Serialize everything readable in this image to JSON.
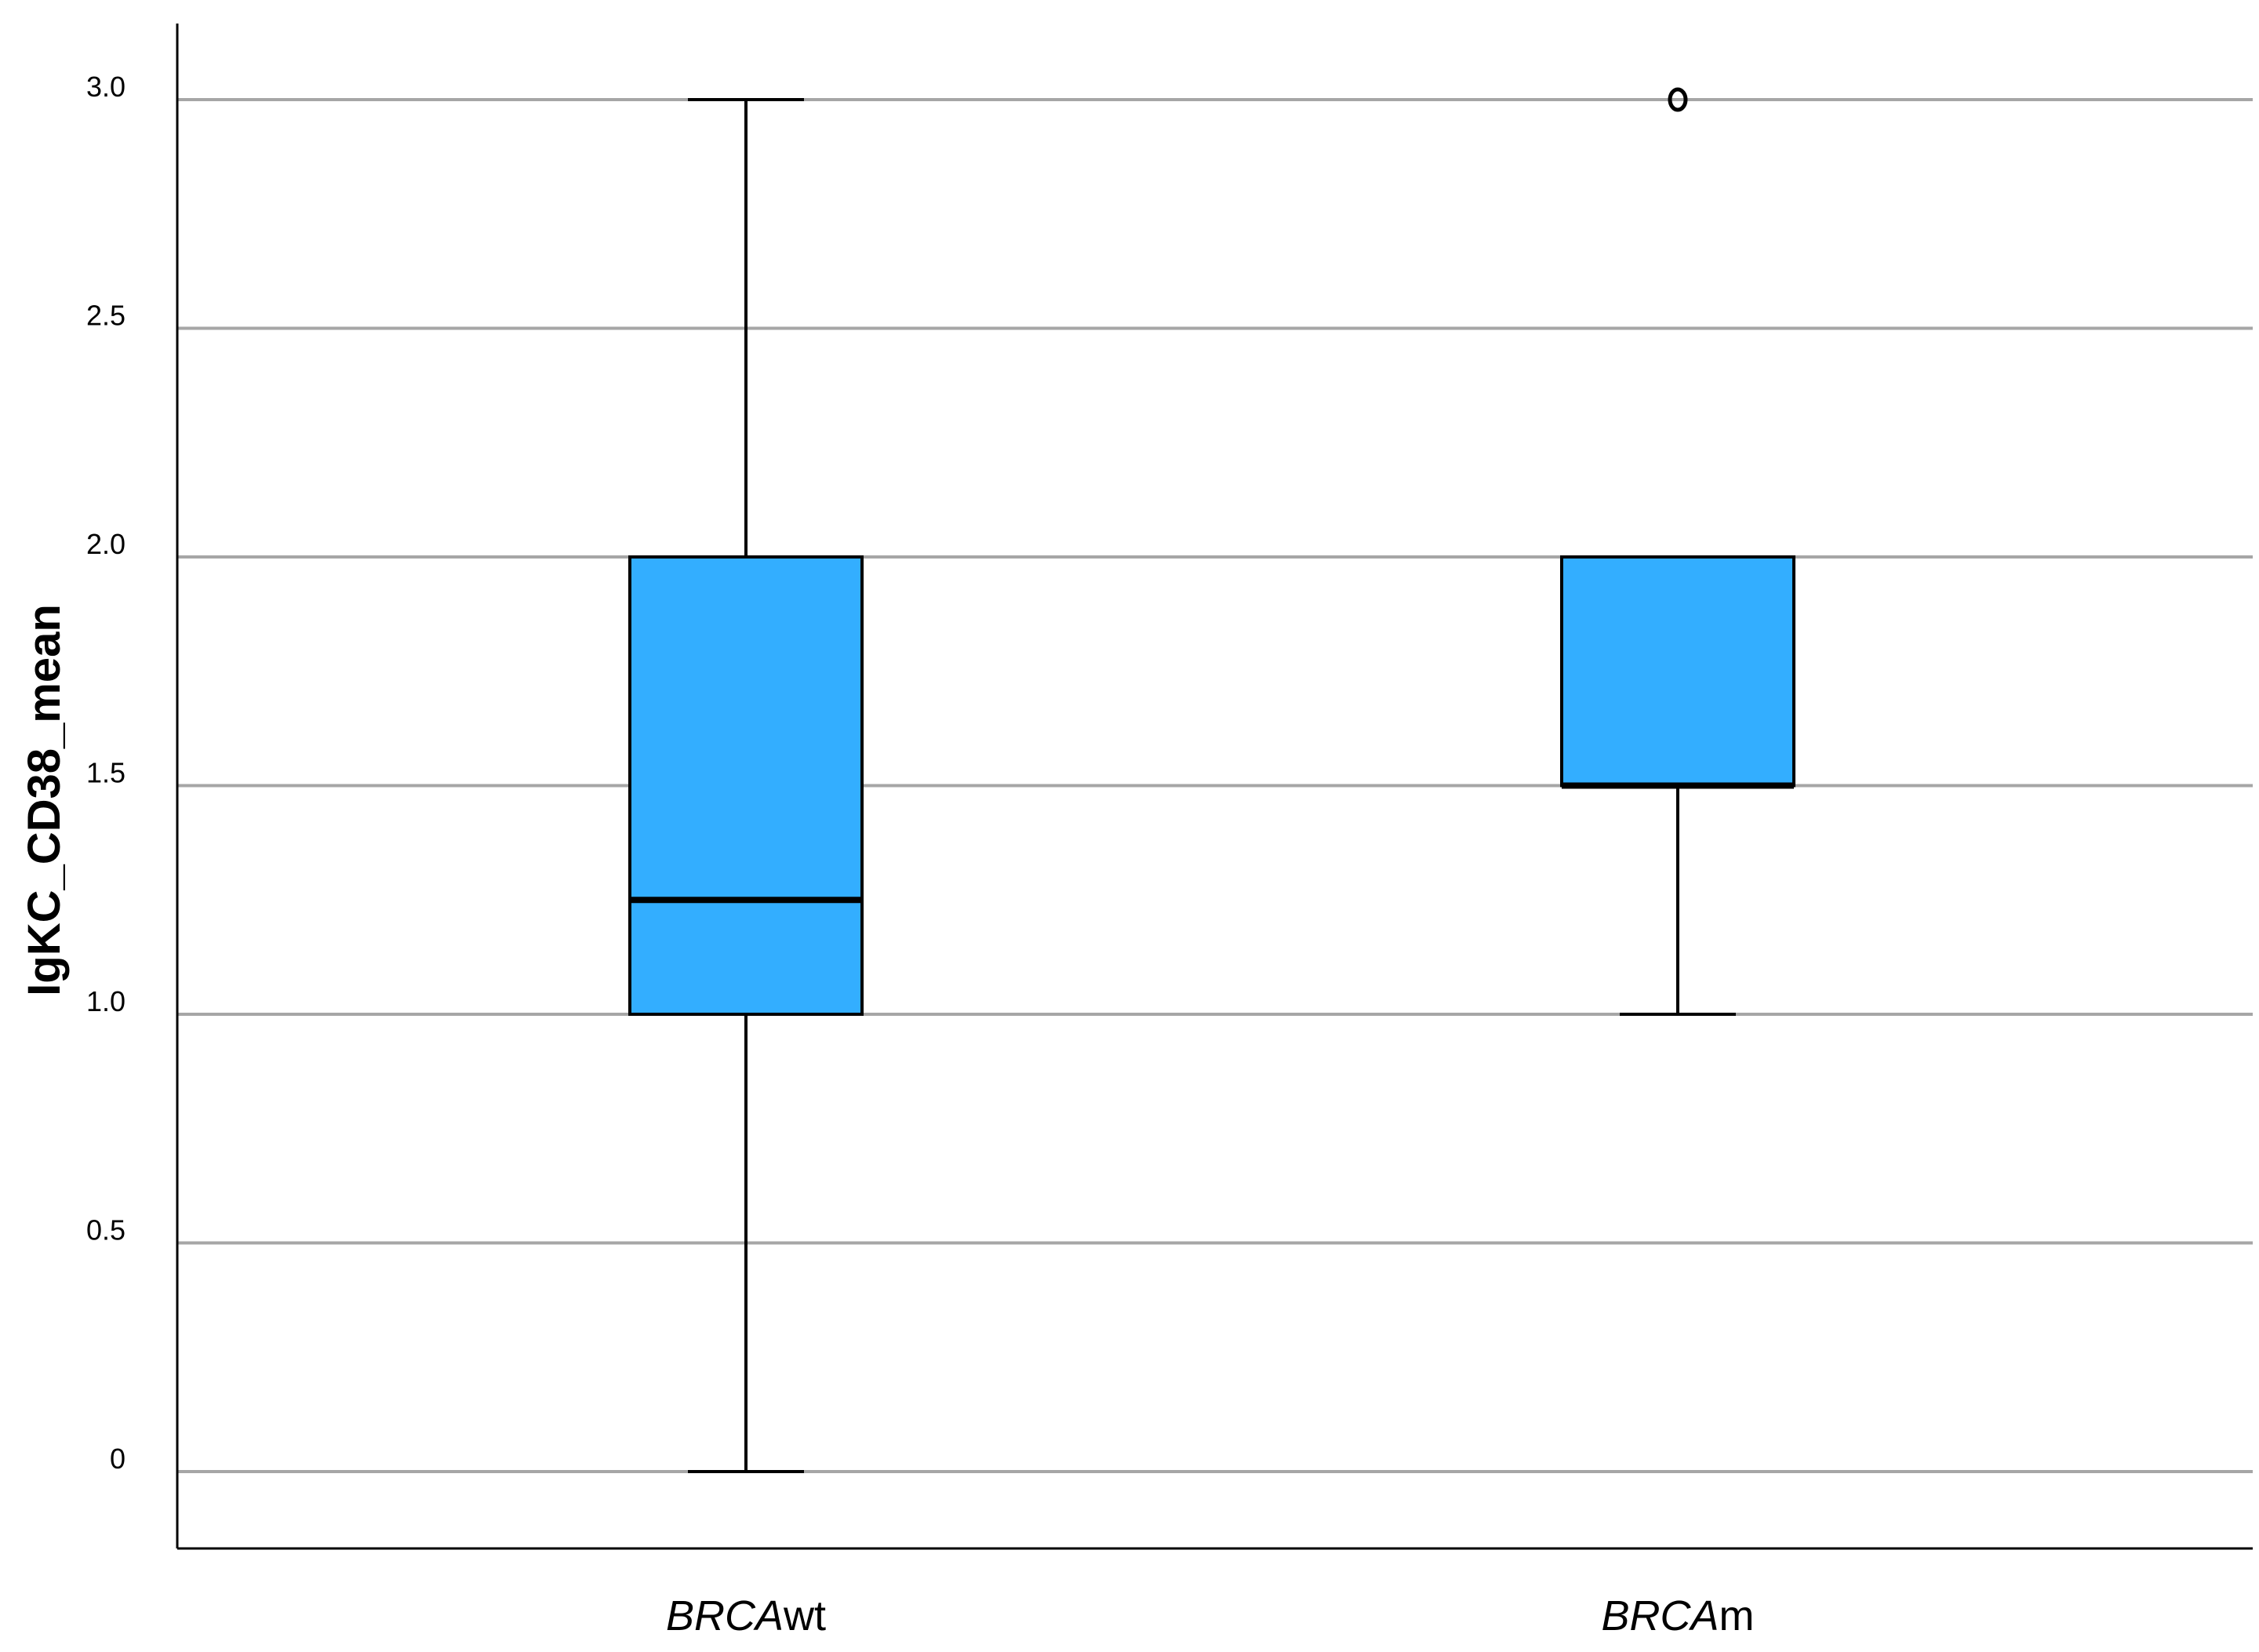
{
  "chart_data": {
    "type": "boxplot",
    "title": "",
    "xlabel": "",
    "ylabel": "IgKC_CD38_mean",
    "ylim": [
      -0.17,
      3.17
    ],
    "yticks": [
      0,
      0.5,
      1.0,
      1.5,
      2.0,
      2.5,
      3.0
    ],
    "ytick_labels": [
      "0",
      "0.5",
      "1.0",
      "1.5",
      "2.0",
      "2.5",
      "3.0"
    ],
    "grid": true,
    "box_color": "#33AEFF",
    "categories": [
      {
        "label_italic": "BRCA",
        "label_suffix": "wt",
        "whisker_low": 0,
        "q1": 1.0,
        "median": 1.25,
        "q3": 2.0,
        "whisker_high": 3.0,
        "outliers": []
      },
      {
        "label_italic": "BRCA",
        "label_suffix": "m",
        "whisker_low": 1.0,
        "q1": 1.5,
        "median": 1.5,
        "q3": 2.0,
        "whisker_high": 2.0,
        "outliers": [
          3.0
        ]
      }
    ]
  }
}
